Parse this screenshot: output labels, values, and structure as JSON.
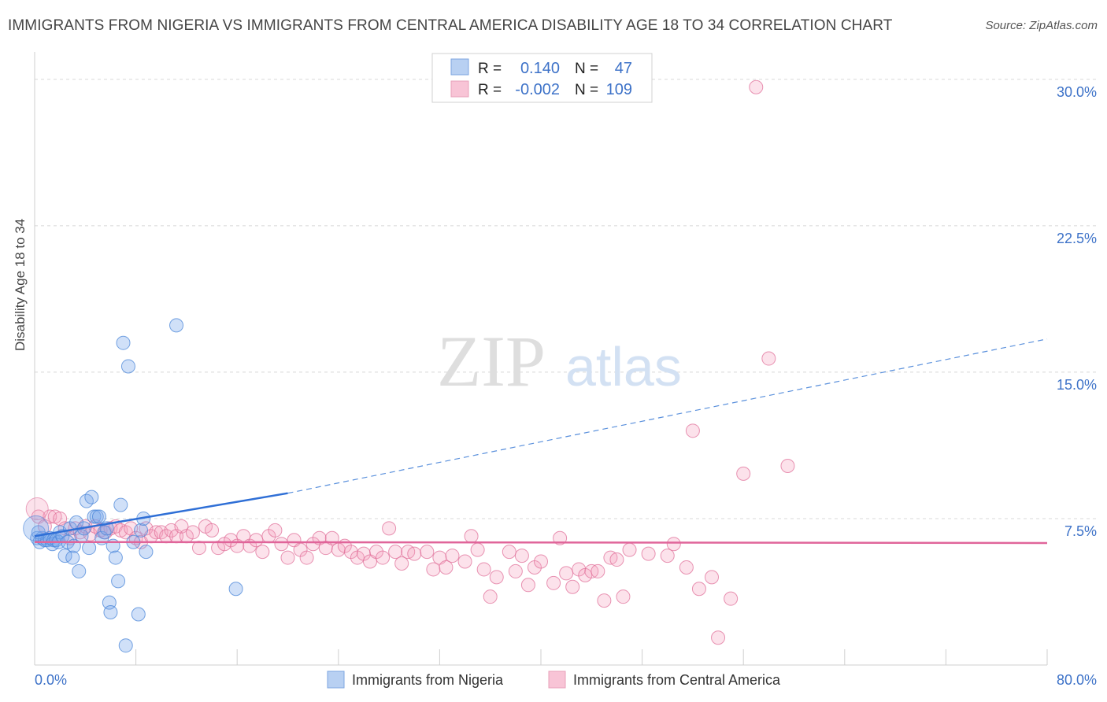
{
  "title": "IMMIGRANTS FROM NIGERIA VS IMMIGRANTS FROM CENTRAL AMERICA DISABILITY AGE 18 TO 34 CORRELATION CHART",
  "source": "Source: ZipAtlas.com",
  "watermark": {
    "zip": "ZIP",
    "atlas": "atlas"
  },
  "colors": {
    "blue": "#4a86d8",
    "blue_fill": "rgba(120,165,235,0.35)",
    "pink": "#e0709a",
    "pink_fill": "rgba(245,160,190,0.30)",
    "axis_text": "#3d72c8"
  },
  "legend": {
    "r_label": "R =",
    "n_label": "N =",
    "rows": [
      {
        "r": "0.140",
        "n": "47"
      },
      {
        "r": "-0.002",
        "n": "109"
      }
    ]
  },
  "bottom_legend": [
    "Immigrants from Nigeria",
    "Immigrants from Central America"
  ],
  "chart_data": {
    "type": "scatter",
    "ylabel": "Disability Age 18 to 34",
    "xlim": [
      0,
      80
    ],
    "ylim": [
      0,
      31
    ],
    "x_tick_labels": [
      "0.0%",
      "80.0%"
    ],
    "y_ticks": [
      {
        "value": 7.5,
        "label": "7.5%"
      },
      {
        "value": 15,
        "label": "15.0%"
      },
      {
        "value": 22.5,
        "label": "22.5%"
      },
      {
        "value": 30,
        "label": "30.0%"
      }
    ],
    "series": [
      {
        "name": "Immigrants from Nigeria",
        "color": "blue",
        "points": [
          [
            0.2,
            6.5
          ],
          [
            0.4,
            6.3
          ],
          [
            0.6,
            6.5
          ],
          [
            0.8,
            6.4
          ],
          [
            1.0,
            6.4
          ],
          [
            1.2,
            6.5
          ],
          [
            1.4,
            6.2
          ],
          [
            1.5,
            6.4
          ],
          [
            1.7,
            6.4
          ],
          [
            1.9,
            6.3
          ],
          [
            2.0,
            6.8
          ],
          [
            2.2,
            6.6
          ],
          [
            2.4,
            5.6
          ],
          [
            2.6,
            6.3
          ],
          [
            2.8,
            7.0
          ],
          [
            3.0,
            5.5
          ],
          [
            3.1,
            6.1
          ],
          [
            3.3,
            7.3
          ],
          [
            3.5,
            4.8
          ],
          [
            3.7,
            6.6
          ],
          [
            3.9,
            7.0
          ],
          [
            4.1,
            8.4
          ],
          [
            4.3,
            6.0
          ],
          [
            4.5,
            8.6
          ],
          [
            4.7,
            7.6
          ],
          [
            4.9,
            7.6
          ],
          [
            5.1,
            7.6
          ],
          [
            5.3,
            6.5
          ],
          [
            5.5,
            6.8
          ],
          [
            5.7,
            7.0
          ],
          [
            5.9,
            3.2
          ],
          [
            6.0,
            2.7
          ],
          [
            6.2,
            6.1
          ],
          [
            6.4,
            5.5
          ],
          [
            6.6,
            4.3
          ],
          [
            6.8,
            8.2
          ],
          [
            7.0,
            16.5
          ],
          [
            7.2,
            1.0
          ],
          [
            7.4,
            15.3
          ],
          [
            7.8,
            6.3
          ],
          [
            8.2,
            2.6
          ],
          [
            8.4,
            6.9
          ],
          [
            8.6,
            7.5
          ],
          [
            8.8,
            5.8
          ],
          [
            11.2,
            17.4
          ],
          [
            15.9,
            3.9
          ],
          [
            0.3,
            6.8
          ]
        ],
        "trend_solid": [
          [
            0,
            6.6
          ],
          [
            20,
            8.8
          ]
        ],
        "trend_dashed": [
          [
            20,
            8.8
          ],
          [
            80,
            16.7
          ]
        ]
      },
      {
        "name": "Immigrants from Central America",
        "color": "pink",
        "points": [
          [
            0.3,
            7.6
          ],
          [
            0.8,
            7.1
          ],
          [
            1.2,
            7.6
          ],
          [
            1.6,
            7.6
          ],
          [
            2.0,
            7.5
          ],
          [
            2.4,
            7.0
          ],
          [
            2.8,
            6.5
          ],
          [
            3.2,
            7.0
          ],
          [
            3.6,
            6.8
          ],
          [
            4.0,
            7.1
          ],
          [
            4.4,
            6.7
          ],
          [
            4.8,
            7.1
          ],
          [
            5.2,
            6.9
          ],
          [
            5.6,
            6.8
          ],
          [
            6.0,
            7.0
          ],
          [
            6.4,
            7.1
          ],
          [
            6.8,
            6.9
          ],
          [
            7.2,
            6.8
          ],
          [
            7.6,
            7.0
          ],
          [
            8.0,
            6.5
          ],
          [
            8.4,
            6.3
          ],
          [
            8.8,
            7.0
          ],
          [
            9.2,
            6.6
          ],
          [
            9.6,
            6.8
          ],
          [
            10.0,
            6.8
          ],
          [
            10.4,
            6.6
          ],
          [
            10.8,
            6.9
          ],
          [
            11.2,
            6.6
          ],
          [
            11.6,
            7.1
          ],
          [
            12.0,
            6.6
          ],
          [
            12.5,
            6.8
          ],
          [
            13.0,
            6.0
          ],
          [
            13.5,
            7.1
          ],
          [
            14.0,
            6.9
          ],
          [
            14.5,
            6.0
          ],
          [
            15.0,
            6.2
          ],
          [
            15.5,
            6.4
          ],
          [
            16.0,
            6.1
          ],
          [
            16.5,
            6.6
          ],
          [
            17.0,
            6.1
          ],
          [
            17.5,
            6.4
          ],
          [
            18.0,
            5.8
          ],
          [
            18.5,
            6.6
          ],
          [
            19.0,
            6.9
          ],
          [
            19.5,
            6.2
          ],
          [
            20.0,
            5.5
          ],
          [
            20.5,
            6.4
          ],
          [
            21.0,
            5.9
          ],
          [
            21.5,
            5.5
          ],
          [
            22.0,
            6.2
          ],
          [
            22.5,
            6.5
          ],
          [
            23.0,
            6.0
          ],
          [
            23.5,
            6.5
          ],
          [
            24.0,
            5.9
          ],
          [
            24.5,
            6.1
          ],
          [
            25.0,
            5.8
          ],
          [
            25.5,
            5.5
          ],
          [
            26.0,
            5.7
          ],
          [
            26.5,
            5.3
          ],
          [
            27.0,
            5.8
          ],
          [
            27.5,
            5.5
          ],
          [
            28.0,
            7.0
          ],
          [
            28.5,
            5.8
          ],
          [
            29.0,
            5.2
          ],
          [
            29.5,
            5.8
          ],
          [
            30.0,
            5.7
          ],
          [
            31.0,
            5.8
          ],
          [
            31.5,
            4.9
          ],
          [
            32.0,
            5.5
          ],
          [
            32.5,
            5.0
          ],
          [
            33.0,
            5.6
          ],
          [
            34.0,
            5.3
          ],
          [
            34.5,
            6.6
          ],
          [
            35.0,
            5.9
          ],
          [
            35.5,
            4.9
          ],
          [
            36.0,
            3.5
          ],
          [
            36.5,
            4.5
          ],
          [
            37.5,
            5.8
          ],
          [
            38.0,
            4.8
          ],
          [
            38.5,
            5.6
          ],
          [
            39.0,
            4.1
          ],
          [
            39.5,
            5.0
          ],
          [
            40.0,
            5.3
          ],
          [
            41.0,
            4.2
          ],
          [
            41.5,
            6.5
          ],
          [
            42.0,
            4.7
          ],
          [
            42.5,
            4.0
          ],
          [
            43.0,
            4.9
          ],
          [
            43.5,
            4.6
          ],
          [
            44.0,
            4.8
          ],
          [
            44.5,
            4.8
          ],
          [
            45.0,
            3.3
          ],
          [
            45.5,
            5.5
          ],
          [
            46.0,
            5.4
          ],
          [
            46.5,
            3.5
          ],
          [
            47.0,
            5.9
          ],
          [
            48.5,
            5.7
          ],
          [
            50.0,
            5.6
          ],
          [
            50.5,
            6.2
          ],
          [
            51.5,
            5.0
          ],
          [
            52.5,
            3.9
          ],
          [
            52.0,
            12.0
          ],
          [
            53.5,
            4.5
          ],
          [
            54.0,
            1.4
          ],
          [
            55.0,
            3.4
          ],
          [
            56.0,
            9.8
          ],
          [
            57.0,
            29.6
          ],
          [
            58.0,
            15.7
          ],
          [
            59.5,
            10.2
          ]
        ],
        "trend_solid": [
          [
            0,
            6.3
          ],
          [
            80,
            6.25
          ]
        ]
      }
    ],
    "x_ticks_minor_percent": [
      0,
      8,
      16,
      24,
      32,
      40,
      48,
      56,
      64,
      72,
      80
    ]
  }
}
